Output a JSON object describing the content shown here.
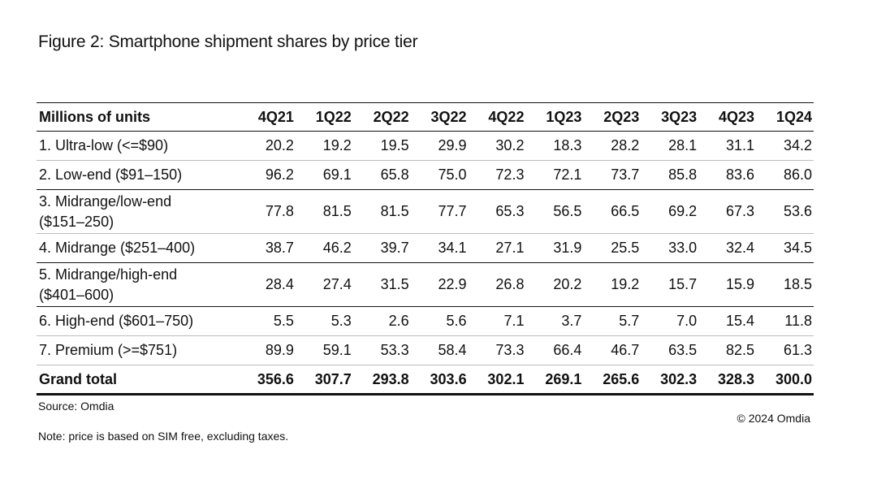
{
  "title": "Figure 2: Smartphone shipment shares by price tier",
  "table": {
    "header_label": "Millions of units",
    "columns": [
      "4Q21",
      "1Q22",
      "2Q22",
      "3Q22",
      "4Q22",
      "1Q23",
      "2Q23",
      "3Q23",
      "4Q23",
      "1Q24"
    ],
    "rows": [
      {
        "label": [
          "1. Ultra-low (<=$90)"
        ],
        "values": [
          "20.2",
          "19.2",
          "19.5",
          "29.9",
          "30.2",
          "18.3",
          "28.2",
          "28.1",
          "31.1",
          "34.2"
        ]
      },
      {
        "label": [
          "2. Low-end ($91–150)"
        ],
        "values": [
          "96.2",
          "69.1",
          "65.8",
          "75.0",
          "72.3",
          "72.1",
          "73.7",
          "85.8",
          "83.6",
          "86.0"
        ]
      },
      {
        "label": [
          "3. Midrange/low-end",
          "($151–250)"
        ],
        "values": [
          "77.8",
          "81.5",
          "81.5",
          "77.7",
          "65.3",
          "56.5",
          "66.5",
          "69.2",
          "67.3",
          "53.6"
        ]
      },
      {
        "label": [
          "4. Midrange ($251–400)"
        ],
        "values": [
          "38.7",
          "46.2",
          "39.7",
          "34.1",
          "27.1",
          "31.9",
          "25.5",
          "33.0",
          "32.4",
          "34.5"
        ]
      },
      {
        "label": [
          "5. Midrange/high-end",
          "($401–600)"
        ],
        "values": [
          "28.4",
          "27.4",
          "31.5",
          "22.9",
          "26.8",
          "20.2",
          "19.2",
          "15.7",
          "15.9",
          "18.5"
        ]
      },
      {
        "label": [
          "6. High-end ($601–750)"
        ],
        "values": [
          "5.5",
          "5.3",
          "2.6",
          "5.6",
          "7.1",
          "3.7",
          "5.7",
          "7.0",
          "15.4",
          "11.8"
        ]
      },
      {
        "label": [
          "7. Premium (>=$751)"
        ],
        "values": [
          "89.9",
          "59.1",
          "53.3",
          "58.4",
          "73.3",
          "66.4",
          "46.7",
          "63.5",
          "82.5",
          "61.3"
        ]
      }
    ],
    "total": {
      "label": "Grand total",
      "values": [
        "356.6",
        "307.7",
        "293.8",
        "303.6",
        "302.1",
        "269.1",
        "265.6",
        "302.3",
        "328.3",
        "300.0"
      ]
    }
  },
  "source": "Source: Omdia",
  "copyright": "© 2024 Omdia",
  "note": "Note: price is based on SIM free, excluding taxes."
}
